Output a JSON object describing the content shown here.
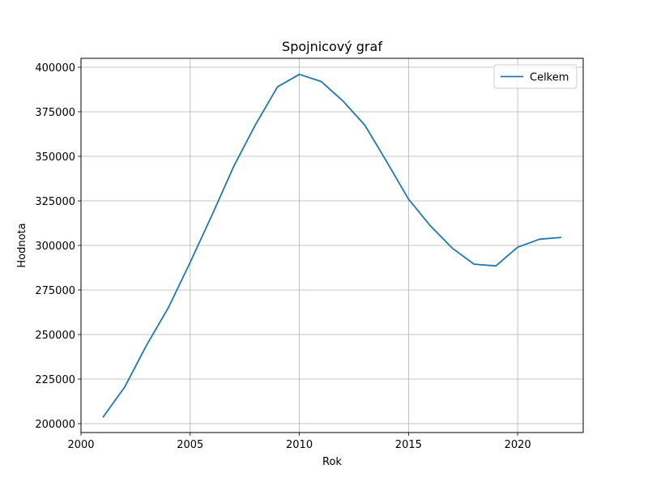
{
  "chart_data": {
    "type": "line",
    "title": "Spojnicový graf",
    "xlabel": "Rok",
    "ylabel": "Hodnota",
    "xlim": [
      2000,
      2023
    ],
    "ylim": [
      195000,
      405000
    ],
    "x_ticks": [
      2000,
      2005,
      2010,
      2015,
      2020
    ],
    "y_ticks": [
      200000,
      225000,
      250000,
      275000,
      300000,
      325000,
      350000,
      375000,
      400000
    ],
    "grid": true,
    "legend_position": "top-right",
    "series": [
      {
        "name": "Celkem",
        "color": "#1f77b4",
        "x": [
          2001,
          2002,
          2003,
          2004,
          2005,
          2006,
          2007,
          2008,
          2009,
          2010,
          2011,
          2012,
          2013,
          2014,
          2015,
          2016,
          2017,
          2018,
          2019,
          2020,
          2021,
          2022
        ],
        "values": [
          203500,
          220500,
          244000,
          265000,
          290500,
          317000,
          344500,
          368000,
          389000,
          396000,
          392000,
          381000,
          367500,
          347000,
          326000,
          311000,
          298500,
          289500,
          288500,
          299000,
          303500,
          304500
        ]
      }
    ]
  }
}
